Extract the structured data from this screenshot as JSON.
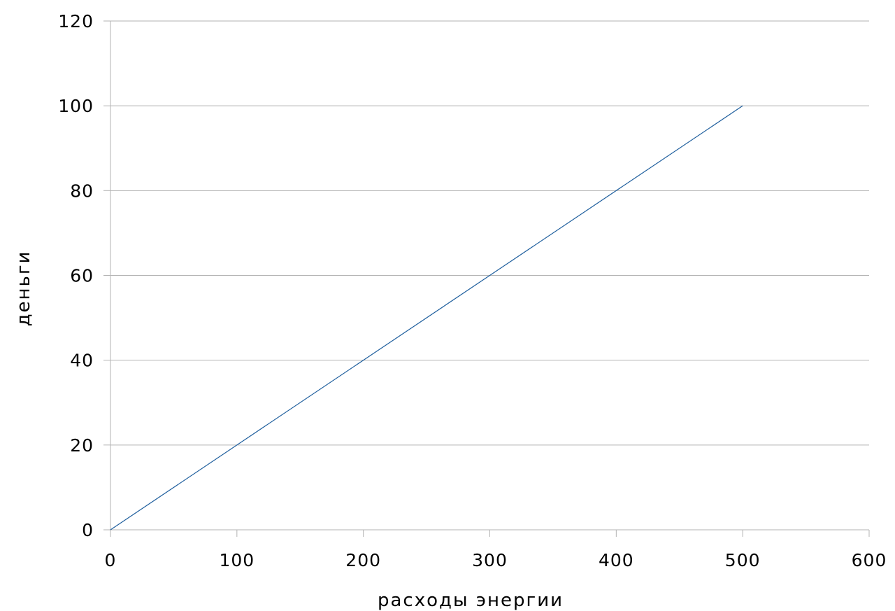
{
  "chart_data": {
    "type": "line",
    "title": "",
    "xlabel": "расходы энергии",
    "ylabel": "деньги",
    "xlim": [
      0,
      600
    ],
    "ylim": [
      0,
      120
    ],
    "x_ticks": [
      0,
      100,
      200,
      300,
      400,
      500,
      600
    ],
    "y_ticks": [
      0,
      20,
      40,
      60,
      80,
      100,
      120
    ],
    "grid": "horizontal",
    "legend": "none",
    "series": [
      {
        "color": "#1f5f9e",
        "x": [
          0,
          500
        ],
        "y": [
          0,
          100
        ]
      }
    ]
  }
}
